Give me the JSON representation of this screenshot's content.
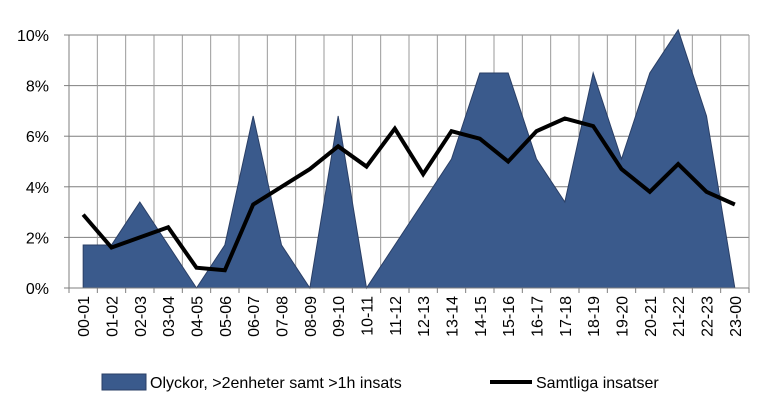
{
  "chart_data": {
    "type": "area",
    "title": "",
    "xlabel": "",
    "ylabel": "",
    "ylim": [
      0,
      10
    ],
    "y_ticks": [
      "0%",
      "2%",
      "4%",
      "6%",
      "8%",
      "10%"
    ],
    "y_tick_values": [
      0,
      2,
      4,
      6,
      8,
      10
    ],
    "grid": "horizontal",
    "legend_position": "bottom",
    "categories": [
      "00-01",
      "01-02",
      "02-03",
      "03-04",
      "04-05",
      "05-06",
      "06-07",
      "07-08",
      "08-09",
      "09-10",
      "10-11",
      "11-12",
      "12-13",
      "13-14",
      "14-15",
      "15-16",
      "16-17",
      "17-18",
      "18-19",
      "19-20",
      "20-21",
      "21-22",
      "22-23",
      "23-00"
    ],
    "series": [
      {
        "name": "Olyckor, >2enheter samt >1h insats",
        "type": "area",
        "color": "#3A5A8C",
        "values": [
          1.7,
          1.7,
          3.4,
          1.7,
          0.0,
          1.7,
          6.8,
          1.7,
          0.0,
          6.8,
          0.0,
          1.7,
          3.4,
          5.1,
          8.5,
          8.5,
          5.1,
          3.4,
          8.5,
          5.1,
          8.5,
          10.2,
          6.8,
          0.0
        ]
      },
      {
        "name": "Samtliga insatser",
        "type": "line",
        "color": "#000000",
        "values": [
          2.9,
          1.6,
          2.0,
          2.4,
          0.8,
          0.7,
          3.3,
          4.0,
          4.7,
          5.6,
          4.8,
          6.3,
          4.5,
          6.2,
          5.9,
          5.0,
          6.2,
          6.7,
          6.4,
          4.7,
          3.8,
          4.9,
          3.8,
          3.3
        ]
      }
    ]
  }
}
